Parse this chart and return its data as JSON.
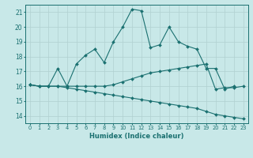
{
  "xlabel": "Humidex (Indice chaleur)",
  "background_color": "#c8e8e8",
  "line_color": "#1a7070",
  "grid_color": "#b0d0d0",
  "xlim": [
    -0.5,
    23.5
  ],
  "ylim": [
    13.5,
    21.5
  ],
  "yticks": [
    14,
    15,
    16,
    17,
    18,
    19,
    20,
    21
  ],
  "xticks": [
    0,
    1,
    2,
    3,
    4,
    5,
    6,
    7,
    8,
    9,
    10,
    11,
    12,
    13,
    14,
    15,
    16,
    17,
    18,
    19,
    20,
    21,
    22,
    23
  ],
  "line1_x": [
    0,
    1,
    2,
    3,
    4,
    5,
    6,
    7,
    8,
    9,
    10,
    11,
    12,
    13,
    14,
    15,
    16,
    17,
    18,
    19,
    20,
    21,
    22
  ],
  "line1_y": [
    16.1,
    16.0,
    16.0,
    17.2,
    16.0,
    17.5,
    18.1,
    18.5,
    17.6,
    19.0,
    20.0,
    21.2,
    21.1,
    18.6,
    18.8,
    20.0,
    19.0,
    18.7,
    18.5,
    17.2,
    17.2,
    15.8,
    16.0
  ],
  "line2_x": [
    0,
    1,
    2,
    3,
    4,
    5,
    6,
    7,
    8,
    9,
    10,
    11,
    12,
    13,
    14,
    15,
    16,
    17,
    18,
    19,
    20,
    21,
    22,
    23
  ],
  "line2_y": [
    16.1,
    16.0,
    16.0,
    16.0,
    16.0,
    16.0,
    16.0,
    16.0,
    16.0,
    16.1,
    16.3,
    16.5,
    16.7,
    16.9,
    17.0,
    17.1,
    17.2,
    17.3,
    17.4,
    17.5,
    15.8,
    15.9,
    15.9,
    16.0
  ],
  "line3_x": [
    0,
    1,
    2,
    3,
    4,
    5,
    6,
    7,
    8,
    9,
    10,
    11,
    12,
    13,
    14,
    15,
    16,
    17,
    18,
    19,
    20,
    21,
    22,
    23
  ],
  "line3_y": [
    16.1,
    16.0,
    16.0,
    16.0,
    15.9,
    15.8,
    15.7,
    15.6,
    15.5,
    15.4,
    15.3,
    15.2,
    15.1,
    15.0,
    14.9,
    14.8,
    14.7,
    14.6,
    14.5,
    14.3,
    14.1,
    14.0,
    13.9,
    13.8
  ]
}
